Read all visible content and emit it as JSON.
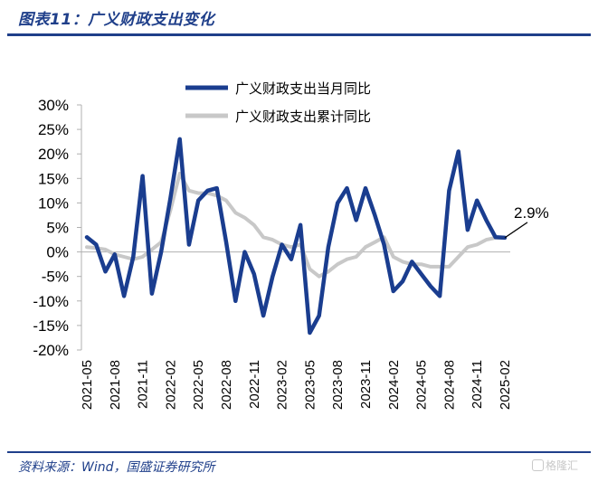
{
  "header": {
    "title": "图表11：广义财政支出变化"
  },
  "footer": {
    "source": "资料来源：Wind，国盛证券研究所",
    "watermark": "格隆汇"
  },
  "colors": {
    "brand": "#1f3f8a",
    "series_monthly": "#1a3d8f",
    "series_cumulative": "#c8c8c8",
    "axis": "#b0b0b0"
  },
  "chart_data": {
    "type": "line",
    "title": "",
    "xlabel": "",
    "ylabel": "",
    "ylim": [
      -20,
      30
    ],
    "yticks": [
      30,
      25,
      20,
      15,
      10,
      5,
      0,
      -5,
      -10,
      -15,
      -20
    ],
    "ytick_labels": [
      "30%",
      "25%",
      "20%",
      "15%",
      "10%",
      "5%",
      "0%",
      "-5%",
      "-10%",
      "-15%",
      "-20%"
    ],
    "x": [
      "2021-05",
      "2021-06",
      "2021-07",
      "2021-08",
      "2021-09",
      "2021-10",
      "2021-11",
      "2021-12",
      "2022-01",
      "2022-02",
      "2022-03",
      "2022-04",
      "2022-05",
      "2022-06",
      "2022-07",
      "2022-08",
      "2022-09",
      "2022-10",
      "2022-11",
      "2022-12",
      "2023-01",
      "2023-02",
      "2023-03",
      "2023-04",
      "2023-05",
      "2023-06",
      "2023-07",
      "2023-08",
      "2023-09",
      "2023-10",
      "2023-11",
      "2023-12",
      "2024-01",
      "2024-02",
      "2024-03",
      "2024-04",
      "2024-05",
      "2024-06",
      "2024-07",
      "2024-08",
      "2024-09",
      "2024-10",
      "2024-11",
      "2024-12",
      "2025-01",
      "2025-02"
    ],
    "xtick_labels": [
      "2021-05",
      "2021-08",
      "2021-11",
      "2022-02",
      "2022-05",
      "2022-08",
      "2022-11",
      "2023-02",
      "2023-05",
      "2023-08",
      "2023-11",
      "2024-02",
      "2024-05",
      "2024-08",
      "2024-11",
      "2025-02"
    ],
    "legend_position": "top",
    "series": [
      {
        "name": "广义财政支出当月同比",
        "values": [
          3.0,
          1.5,
          -4.0,
          -0.5,
          -9.0,
          -1.0,
          15.5,
          -8.5,
          0.0,
          11.0,
          23.0,
          1.5,
          10.5,
          12.5,
          13.0,
          2.0,
          -10.0,
          0.0,
          -4.5,
          -13.0,
          -5.0,
          1.5,
          -1.5,
          5.5,
          -16.5,
          -13.0,
          1.0,
          10.0,
          13.0,
          6.5,
          13.0,
          7.5,
          1.5,
          -8.0,
          -6.0,
          -2.0,
          -4.5,
          -7.0,
          -9.0,
          12.5,
          20.5,
          4.5,
          10.5,
          6.5,
          3.0,
          2.9
        ]
      },
      {
        "name": "广义财政支出累计同比",
        "values": [
          1.0,
          0.8,
          0.5,
          -0.5,
          -1.0,
          -1.5,
          -1.0,
          0.5,
          2.0,
          8.5,
          16.0,
          12.5,
          12.0,
          12.0,
          11.5,
          10.5,
          8.0,
          7.0,
          5.5,
          3.0,
          2.5,
          1.5,
          1.0,
          1.5,
          -3.5,
          -5.0,
          -4.0,
          -2.5,
          -1.5,
          -1.0,
          1.0,
          2.0,
          3.0,
          -1.0,
          -2.0,
          -2.5,
          -2.5,
          -3.0,
          -3.0,
          -3.0,
          -1.0,
          1.0,
          1.5,
          2.5,
          2.9,
          2.9
        ]
      }
    ],
    "annotations": [
      {
        "text": "2.9%",
        "target_series": 0,
        "target_index": 45
      }
    ]
  }
}
